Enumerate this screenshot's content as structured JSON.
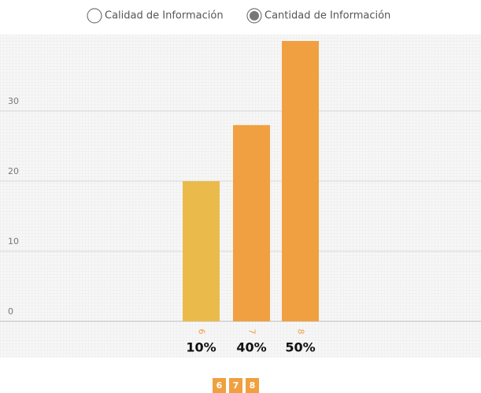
{
  "options": [
    {
      "label": "Calidad de Información",
      "selected": false
    },
    {
      "label": "Cantidad de Información",
      "selected": true
    }
  ],
  "chart_data": {
    "type": "bar",
    "categories": [
      "6",
      "7",
      "8"
    ],
    "values": [
      20,
      28,
      40
    ],
    "colors": [
      "#eabb4a",
      "#f0a040",
      "#f0a040"
    ],
    "shares": [
      "10%",
      "40%",
      "50%"
    ],
    "ylim": [
      0,
      40
    ],
    "yticks": [
      0,
      10,
      20,
      30
    ],
    "grid": true
  },
  "pages": [
    "6",
    "7",
    "8"
  ]
}
